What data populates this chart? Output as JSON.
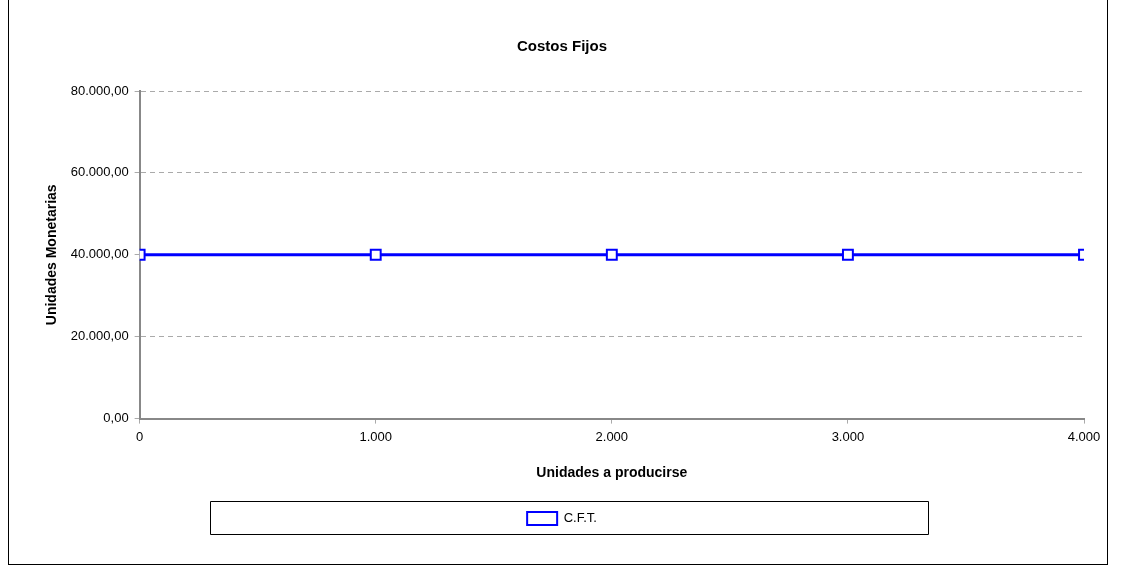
{
  "chart_data": {
    "type": "line",
    "title": "Costos Fijos",
    "xlabel": "Unidades a producirse",
    "ylabel": "Unidades Monetarias",
    "x": [
      0,
      1000,
      2000,
      3000,
      4000
    ],
    "series": [
      {
        "name": "C.F.T.",
        "color": "#0000ff",
        "values": [
          40000,
          40000,
          40000,
          40000,
          40000
        ]
      }
    ],
    "xlim": [
      0,
      4000
    ],
    "ylim": [
      0,
      80000
    ],
    "xticks": [
      {
        "value": 0,
        "label": "0"
      },
      {
        "value": 1000,
        "label": "1.000"
      },
      {
        "value": 2000,
        "label": "2.000"
      },
      {
        "value": 3000,
        "label": "3.000"
      },
      {
        "value": 4000,
        "label": "4.000"
      }
    ],
    "yticks": [
      {
        "value": 0,
        "label": "0,00"
      },
      {
        "value": 20000,
        "label": "20.000,00"
      },
      {
        "value": 40000,
        "label": "40.000,00"
      },
      {
        "value": 60000,
        "label": "60.000,00"
      },
      {
        "value": 80000,
        "label": "80.000,00"
      }
    ],
    "grid": "y",
    "legend": "bottom",
    "marker": "square",
    "line_style": "solid"
  }
}
